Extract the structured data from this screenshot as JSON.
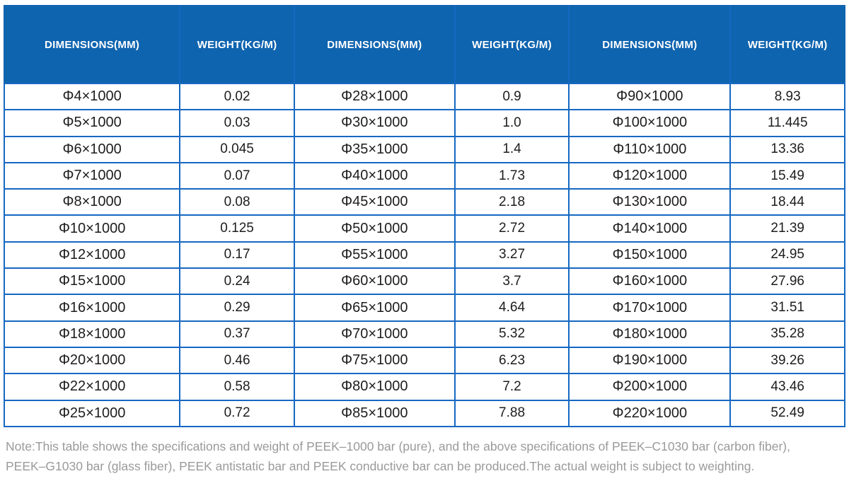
{
  "colors": {
    "header_bg": "#0f64af",
    "grid_border": "#1668c2",
    "cell_text": "#1d1d1d",
    "note_text": "#9a9a9a"
  },
  "table": {
    "header_labels": [
      "DIMENSIONS(MM)",
      "WEIGHT(KG/M)",
      "DIMENSIONS(MM)",
      "WEIGHT(KG/M)",
      "DIMENSIONS(MM)",
      "WEIGHT(KG/M)"
    ],
    "rows": [
      [
        "Φ4×1000",
        "0.02",
        "Φ28×1000",
        "0.9",
        "Φ90×1000",
        "8.93"
      ],
      [
        "Φ5×1000",
        "0.03",
        "Φ30×1000",
        "1.0",
        "Φ100×1000",
        "11.445"
      ],
      [
        "Φ6×1000",
        "0.045",
        "Φ35×1000",
        "1.4",
        "Φ110×1000",
        "13.36"
      ],
      [
        "Φ7×1000",
        "0.07",
        "Φ40×1000",
        "1.73",
        "Φ120×1000",
        "15.49"
      ],
      [
        "Φ8×1000",
        "0.08",
        "Φ45×1000",
        "2.18",
        "Φ130×1000",
        "18.44"
      ],
      [
        "Φ10×1000",
        "0.125",
        "Φ50×1000",
        "2.72",
        "Φ140×1000",
        "21.39"
      ],
      [
        "Φ12×1000",
        "0.17",
        "Φ55×1000",
        "3.27",
        "Φ150×1000",
        "24.95"
      ],
      [
        "Φ15×1000",
        "0.24",
        "Φ60×1000",
        "3.7",
        "Φ160×1000",
        "27.96"
      ],
      [
        "Φ16×1000",
        "0.29",
        "Φ65×1000",
        "4.64",
        "Φ170×1000",
        "31.51"
      ],
      [
        "Φ18×1000",
        "0.37",
        "Φ70×1000",
        "5.32",
        "Φ180×1000",
        "35.28"
      ],
      [
        "Φ20×1000",
        "0.46",
        "Φ75×1000",
        "6.23",
        "Φ190×1000",
        "39.26"
      ],
      [
        "Φ22×1000",
        "0.58",
        "Φ80×1000",
        "7.2",
        "Φ200×1000",
        "43.46"
      ],
      [
        "Φ25×1000",
        "0.72",
        "Φ85×1000",
        "7.88",
        "Φ220×1000",
        "52.49"
      ]
    ]
  },
  "chart_data": {
    "type": "table",
    "columns": [
      "DIMENSIONS(MM)",
      "WEIGHT(KG/M)",
      "DIMENSIONS(MM)",
      "WEIGHT(KG/M)",
      "DIMENSIONS(MM)",
      "WEIGHT(KG/M)"
    ],
    "rows": [
      [
        "Φ4×1000",
        "0.02",
        "Φ28×1000",
        "0.9",
        "Φ90×1000",
        "8.93"
      ],
      [
        "Φ5×1000",
        "0.03",
        "Φ30×1000",
        "1.0",
        "Φ100×1000",
        "11.445"
      ],
      [
        "Φ6×1000",
        "0.045",
        "Φ35×1000",
        "1.4",
        "Φ110×1000",
        "13.36"
      ],
      [
        "Φ7×1000",
        "0.07",
        "Φ40×1000",
        "1.73",
        "Φ120×1000",
        "15.49"
      ],
      [
        "Φ8×1000",
        "0.08",
        "Φ45×1000",
        "2.18",
        "Φ130×1000",
        "18.44"
      ],
      [
        "Φ10×1000",
        "0.125",
        "Φ50×1000",
        "2.72",
        "Φ140×1000",
        "21.39"
      ],
      [
        "Φ12×1000",
        "0.17",
        "Φ55×1000",
        "3.27",
        "Φ150×1000",
        "24.95"
      ],
      [
        "Φ15×1000",
        "0.24",
        "Φ60×1000",
        "3.7",
        "Φ160×1000",
        "27.96"
      ],
      [
        "Φ16×1000",
        "0.29",
        "Φ65×1000",
        "4.64",
        "Φ170×1000",
        "31.51"
      ],
      [
        "Φ18×1000",
        "0.37",
        "Φ70×1000",
        "5.32",
        "Φ180×1000",
        "35.28"
      ],
      [
        "Φ20×1000",
        "0.46",
        "Φ75×1000",
        "6.23",
        "Φ190×1000",
        "39.26"
      ],
      [
        "Φ22×1000",
        "0.58",
        "Φ80×1000",
        "7.2",
        "Φ200×1000",
        "43.46"
      ],
      [
        "Φ25×1000",
        "0.72",
        "Φ85×1000",
        "7.88",
        "Φ220×1000",
        "52.49"
      ]
    ]
  },
  "note": {
    "line1": "Note:This table shows the specifications and weight of PEEK–1000 bar (pure), and the above specifications of PEEK–C1030 bar (carbon fiber),",
    "line2": "PEEK–G1030 bar (glass fiber), PEEK antistatic bar and PEEK conductive bar can be produced.The actual weight is subject to weighting."
  }
}
